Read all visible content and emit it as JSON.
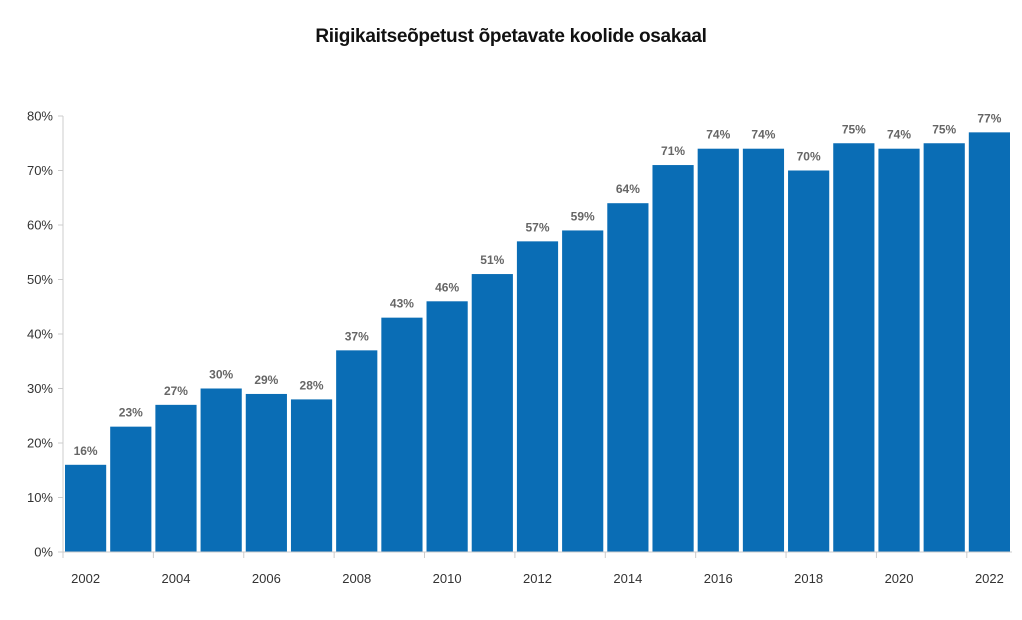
{
  "chart_data": {
    "type": "bar",
    "title": "Riigikaitseõpetust õpetavate koolide osakaal",
    "xlabel": "",
    "ylabel": "",
    "categories": [
      "2002",
      "2003",
      "2004",
      "2005",
      "2006",
      "2007",
      "2008",
      "2009",
      "2010",
      "2011",
      "2012",
      "2013",
      "2014",
      "2015",
      "2016",
      "2017",
      "2018",
      "2019",
      "2020",
      "2021",
      "2022"
    ],
    "values": [
      16,
      23,
      27,
      30,
      29,
      28,
      37,
      43,
      46,
      51,
      57,
      59,
      64,
      71,
      74,
      74,
      70,
      75,
      74,
      75,
      77
    ],
    "data_labels": [
      "16%",
      "23%",
      "27%",
      "30%",
      "29%",
      "28%",
      "37%",
      "43%",
      "46%",
      "51%",
      "57%",
      "59%",
      "64%",
      "71%",
      "74%",
      "74%",
      "70%",
      "75%",
      "74%",
      "75%",
      "77%"
    ],
    "x_tick_labels": [
      "2002",
      "2004",
      "2006",
      "2008",
      "2010",
      "2012",
      "2014",
      "2016",
      "2018",
      "2020",
      "2022"
    ],
    "y_ticks": [
      0,
      10,
      20,
      30,
      40,
      50,
      60,
      70,
      80
    ],
    "y_tick_labels": [
      "0%",
      "10%",
      "20%",
      "30%",
      "40%",
      "50%",
      "60%",
      "70%",
      "80%"
    ],
    "ylim": [
      0,
      80
    ],
    "grid": false,
    "legend": "none",
    "colors": {
      "bar": "#0a6db5",
      "axis": "#cccccc"
    }
  }
}
